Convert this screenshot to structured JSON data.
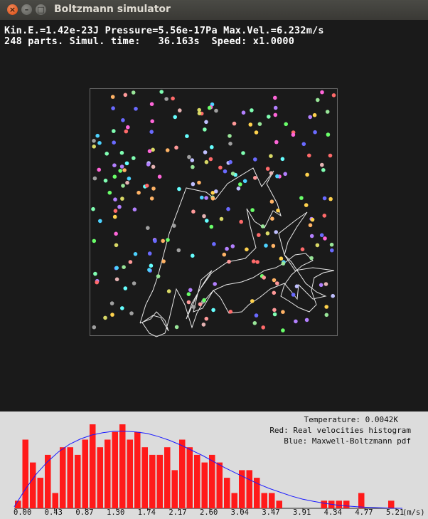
{
  "window": {
    "title": "Boltzmann simulator"
  },
  "stats": {
    "line1": "Kin.E.=1.42e-23J Pressure=5.56e-17Pa Max.Vel.=6.232m/s",
    "line2": "248 parts. Simul. time:   36.163s  Speed: x1.0000"
  },
  "histogram_panel": {
    "temperature": "Temperature: 0.0042K",
    "legend_red": "Red: Real velocities histogram",
    "legend_blue": "Blue: Maxwell-Boltzmann pdf",
    "colors": {
      "bars": "#ff1a1a",
      "curve": "#1a1aff"
    }
  },
  "chart_data": {
    "type": "bar",
    "xlabel": "(m/s)",
    "x_ticks": [
      "0.00",
      "0.43",
      "0.87",
      "1.30",
      "1.74",
      "2.17",
      "2.60",
      "3.04",
      "3.47",
      "3.91",
      "4.34",
      "4.77",
      "5.21"
    ],
    "xlim": [
      0,
      5.21
    ],
    "bin_counts": [
      1,
      9,
      6,
      4,
      7,
      2,
      8,
      8,
      7,
      9,
      11,
      8,
      9,
      10,
      11,
      9,
      10,
      8,
      7,
      7,
      8,
      5,
      9,
      8,
      7,
      6,
      7,
      6,
      4,
      2,
      5,
      5,
      4,
      2,
      2,
      1,
      0,
      0,
      0,
      0,
      0,
      1,
      1,
      1,
      1,
      0,
      2,
      0,
      0,
      0,
      1,
      0
    ],
    "curve_values": [
      0.2,
      2.5,
      4.5,
      6.1,
      7.4,
      8.4,
      9.1,
      9.6,
      9.9,
      10.1,
      10.1,
      10.0,
      9.8,
      9.4,
      8.9,
      8.3,
      7.6,
      6.9,
      6.1,
      5.3,
      4.6,
      3.9,
      3.2,
      2.6,
      2.1,
      1.6,
      1.2,
      0.9,
      0.65,
      0.45,
      0.3,
      0.2,
      0.12,
      0.07,
      0.03,
      0.0
    ],
    "series": [
      {
        "name": "Real velocities histogram",
        "color": "#ff1a1a"
      },
      {
        "name": "Maxwell-Boltzmann pdf",
        "color": "#1a1aff"
      }
    ]
  }
}
